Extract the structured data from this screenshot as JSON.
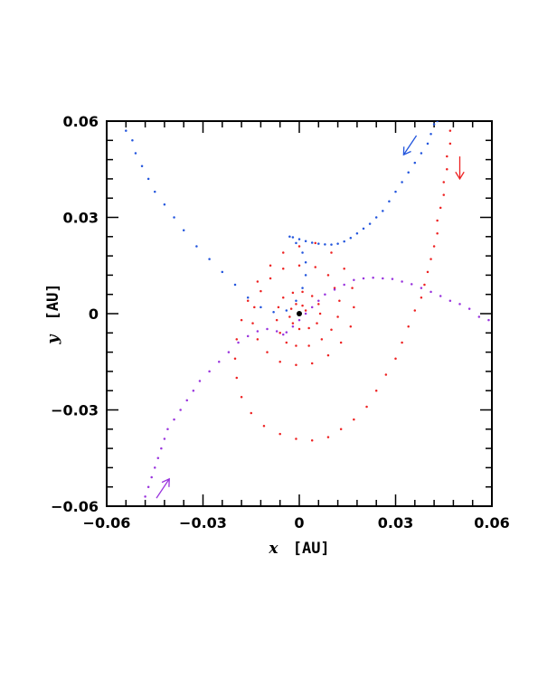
{
  "chart_data": {
    "type": "scatter",
    "title": "",
    "xlabel_var": "x",
    "xlabel_unit": "[AU]",
    "ylabel_var": "y",
    "ylabel_unit": "[AU]",
    "xlim": [
      -0.06,
      0.06
    ],
    "ylim": [
      -0.06,
      0.06
    ],
    "x_ticks": [
      -0.06,
      -0.03,
      0,
      0.03,
      0.06
    ],
    "y_ticks": [
      -0.06,
      -0.03,
      0,
      0.03,
      0.06
    ],
    "x_tick_labels": [
      "−0.06",
      "−0.03",
      "0",
      "0.03",
      "0.06"
    ],
    "y_tick_labels": [
      "−0.06",
      "−0.03",
      "0",
      "0.03",
      "0.06"
    ],
    "grid": false,
    "central_object": {
      "x": 0,
      "y": 0,
      "color": "#000000"
    },
    "series": [
      {
        "color": "#2255dd",
        "arrow": {
          "from": [
            0.0365,
            0.0555
          ],
          "to": [
            0.0325,
            0.0495
          ]
        },
        "points": [
          [
            -0.054,
            0.057
          ],
          [
            -0.052,
            0.054
          ],
          [
            -0.051,
            0.05
          ],
          [
            -0.049,
            0.046
          ],
          [
            -0.047,
            0.042
          ],
          [
            -0.045,
            0.038
          ],
          [
            -0.042,
            0.034
          ],
          [
            -0.039,
            0.03
          ],
          [
            -0.036,
            0.026
          ],
          [
            -0.032,
            0.021
          ],
          [
            -0.028,
            0.017
          ],
          [
            -0.024,
            0.013
          ],
          [
            -0.02,
            0.009
          ],
          [
            -0.016,
            0.005
          ],
          [
            -0.012,
            0.002
          ],
          [
            -0.008,
            0.0005
          ],
          [
            -0.004,
            0.001
          ],
          [
            -0.001,
            0.004
          ],
          [
            0.001,
            0.008
          ],
          [
            0.002,
            0.012
          ],
          [
            0.002,
            0.016
          ],
          [
            0.001,
            0.019
          ],
          [
            -0.001,
            0.022
          ],
          [
            -0.003,
            0.024
          ],
          [
            -0.002,
            0.0238
          ],
          [
            0.0,
            0.0232
          ],
          [
            0.002,
            0.0226
          ],
          [
            0.004,
            0.0221
          ],
          [
            0.006,
            0.0218
          ],
          [
            0.008,
            0.0216
          ],
          [
            0.01,
            0.0215
          ],
          [
            0.012,
            0.0218
          ],
          [
            0.014,
            0.0225
          ],
          [
            0.016,
            0.0236
          ],
          [
            0.018,
            0.025
          ],
          [
            0.02,
            0.0265
          ],
          [
            0.022,
            0.028
          ],
          [
            0.024,
            0.03
          ],
          [
            0.026,
            0.032
          ],
          [
            0.028,
            0.035
          ],
          [
            0.03,
            0.038
          ],
          [
            0.032,
            0.041
          ],
          [
            0.034,
            0.044
          ],
          [
            0.036,
            0.047
          ],
          [
            0.038,
            0.05
          ],
          [
            0.04,
            0.053
          ],
          [
            0.041,
            0.056
          ],
          [
            0.042,
            0.059
          ],
          [
            0.043,
            0.06
          ]
        ]
      },
      {
        "color": "#ee2222",
        "arrow": {
          "from": [
            0.05,
            0.049
          ],
          "to": [
            0.05,
            0.042
          ]
        },
        "points": [
          [
            0.047,
            0.057
          ],
          [
            0.047,
            0.053
          ],
          [
            0.046,
            0.049
          ],
          [
            0.046,
            0.045
          ],
          [
            0.045,
            0.041
          ],
          [
            0.045,
            0.037
          ],
          [
            0.044,
            0.033
          ],
          [
            0.043,
            0.029
          ],
          [
            0.043,
            0.025
          ],
          [
            0.042,
            0.021
          ],
          [
            0.041,
            0.017
          ],
          [
            0.04,
            0.013
          ],
          [
            0.039,
            0.009
          ],
          [
            0.038,
            0.005
          ],
          [
            0.036,
            0.001
          ],
          [
            0.034,
            -0.004
          ],
          [
            0.032,
            -0.009
          ],
          [
            0.03,
            -0.014
          ],
          [
            0.027,
            -0.019
          ],
          [
            0.024,
            -0.024
          ],
          [
            0.021,
            -0.029
          ],
          [
            0.017,
            -0.033
          ],
          [
            0.013,
            -0.036
          ],
          [
            0.009,
            -0.0385
          ],
          [
            0.004,
            -0.0395
          ],
          [
            -0.001,
            -0.039
          ],
          [
            -0.006,
            -0.0375
          ],
          [
            -0.011,
            -0.035
          ],
          [
            -0.015,
            -0.031
          ],
          [
            -0.018,
            -0.026
          ],
          [
            -0.0195,
            -0.02
          ],
          [
            -0.02,
            -0.014
          ],
          [
            -0.0195,
            -0.008
          ],
          [
            -0.018,
            -0.002
          ],
          [
            -0.016,
            0.004
          ],
          [
            -0.013,
            0.01
          ],
          [
            -0.009,
            0.015
          ],
          [
            -0.005,
            0.019
          ],
          [
            0.0,
            0.021
          ],
          [
            0.005,
            0.022
          ],
          [
            0.01,
            0.019
          ],
          [
            0.014,
            0.014
          ],
          [
            0.0165,
            0.008
          ],
          [
            0.017,
            0.002
          ],
          [
            0.016,
            -0.004
          ],
          [
            0.013,
            -0.009
          ],
          [
            0.009,
            -0.013
          ],
          [
            0.004,
            -0.0155
          ],
          [
            -0.001,
            -0.016
          ],
          [
            -0.006,
            -0.015
          ],
          [
            -0.01,
            -0.012
          ],
          [
            -0.013,
            -0.008
          ],
          [
            -0.0145,
            -0.003
          ],
          [
            -0.014,
            0.002
          ],
          [
            -0.012,
            0.007
          ],
          [
            -0.009,
            0.011
          ],
          [
            -0.005,
            0.014
          ],
          [
            0.0,
            0.015
          ],
          [
            0.005,
            0.0145
          ],
          [
            0.009,
            0.012
          ],
          [
            0.011,
            0.008
          ],
          [
            0.0125,
            0.004
          ],
          [
            0.012,
            -0.001
          ],
          [
            0.01,
            -0.005
          ],
          [
            0.007,
            -0.008
          ],
          [
            0.003,
            -0.01
          ],
          [
            -0.001,
            -0.01
          ],
          [
            -0.004,
            -0.009
          ],
          [
            -0.006,
            -0.006
          ],
          [
            -0.007,
            -0.002
          ],
          [
            -0.0065,
            0.002
          ],
          [
            -0.005,
            0.005
          ],
          [
            -0.002,
            0.0065
          ],
          [
            0.001,
            0.0068
          ],
          [
            0.004,
            0.0055
          ],
          [
            0.006,
            0.003
          ],
          [
            0.0065,
            0.0
          ],
          [
            0.0055,
            -0.003
          ],
          [
            0.003,
            -0.0045
          ],
          [
            0.0,
            -0.0048
          ],
          [
            -0.002,
            -0.003
          ],
          [
            -0.003,
            -0.001
          ],
          [
            -0.0025,
            0.0015
          ],
          [
            -0.001,
            0.003
          ],
          [
            0.001,
            0.0025
          ],
          [
            0.002,
            0.001
          ]
        ]
      },
      {
        "color": "#9933dd",
        "arrow": {
          "from": [
            -0.0445,
            -0.0575
          ],
          "to": [
            -0.0405,
            -0.0515
          ]
        },
        "points": [
          [
            -0.048,
            -0.057
          ],
          [
            -0.047,
            -0.054
          ],
          [
            -0.046,
            -0.051
          ],
          [
            -0.045,
            -0.048
          ],
          [
            -0.044,
            -0.045
          ],
          [
            -0.043,
            -0.042
          ],
          [
            -0.042,
            -0.039
          ],
          [
            -0.041,
            -0.036
          ],
          [
            -0.039,
            -0.033
          ],
          [
            -0.037,
            -0.03
          ],
          [
            -0.035,
            -0.027
          ],
          [
            -0.033,
            -0.024
          ],
          [
            -0.031,
            -0.021
          ],
          [
            -0.028,
            -0.018
          ],
          [
            -0.025,
            -0.015
          ],
          [
            -0.022,
            -0.012
          ],
          [
            -0.019,
            -0.009
          ],
          [
            -0.016,
            -0.007
          ],
          [
            -0.013,
            -0.0055
          ],
          [
            -0.01,
            -0.0048
          ],
          [
            -0.007,
            -0.0055
          ],
          [
            -0.005,
            -0.0065
          ],
          [
            -0.004,
            -0.0058
          ],
          [
            -0.002,
            -0.004
          ],
          [
            0.0,
            -0.002
          ],
          [
            0.002,
            0.0
          ],
          [
            0.004,
            0.002
          ],
          [
            0.006,
            0.004
          ],
          [
            0.008,
            0.006
          ],
          [
            0.011,
            0.0075
          ],
          [
            0.014,
            0.009
          ],
          [
            0.017,
            0.0105
          ],
          [
            0.02,
            0.011
          ],
          [
            0.023,
            0.0112
          ],
          [
            0.026,
            0.011
          ],
          [
            0.029,
            0.0108
          ],
          [
            0.032,
            0.01
          ],
          [
            0.035,
            0.0092
          ],
          [
            0.038,
            0.008
          ],
          [
            0.041,
            0.0068
          ],
          [
            0.044,
            0.0055
          ],
          [
            0.047,
            0.004
          ],
          [
            0.05,
            0.003
          ],
          [
            0.053,
            0.0015
          ],
          [
            0.056,
            -0.001
          ],
          [
            0.059,
            -0.002
          ]
        ]
      }
    ]
  }
}
